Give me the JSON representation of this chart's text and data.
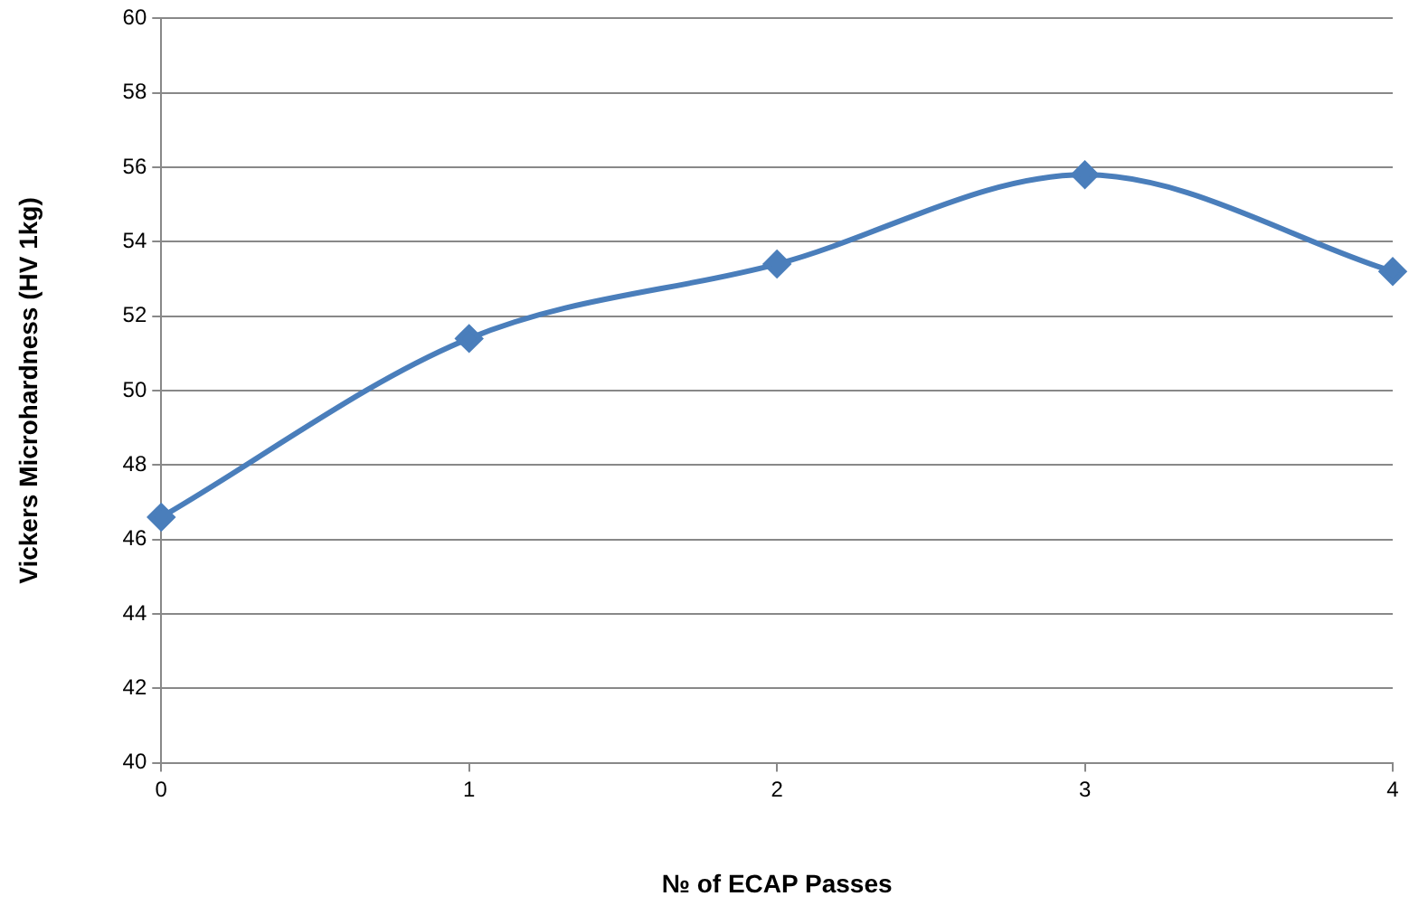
{
  "chart_data": {
    "type": "line",
    "xlabel": "№ of ECAP Passes",
    "ylabel": "Vickers Microhardness (HV 1kg)",
    "x": [
      0,
      1,
      2,
      3,
      4
    ],
    "series": [
      {
        "color": "#4a7ebb",
        "values": [
          46.6,
          51.4,
          53.4,
          55.8,
          53.2
        ]
      }
    ],
    "xlim": [
      0,
      4
    ],
    "xticks": [
      0,
      1,
      2,
      3,
      4
    ],
    "ylim": [
      40,
      60
    ],
    "yticks": [
      40,
      42,
      44,
      46,
      48,
      50,
      52,
      54,
      56,
      58,
      60
    ],
    "grid": "y",
    "legend": false,
    "marker": "diamond",
    "line_style": "solid"
  }
}
